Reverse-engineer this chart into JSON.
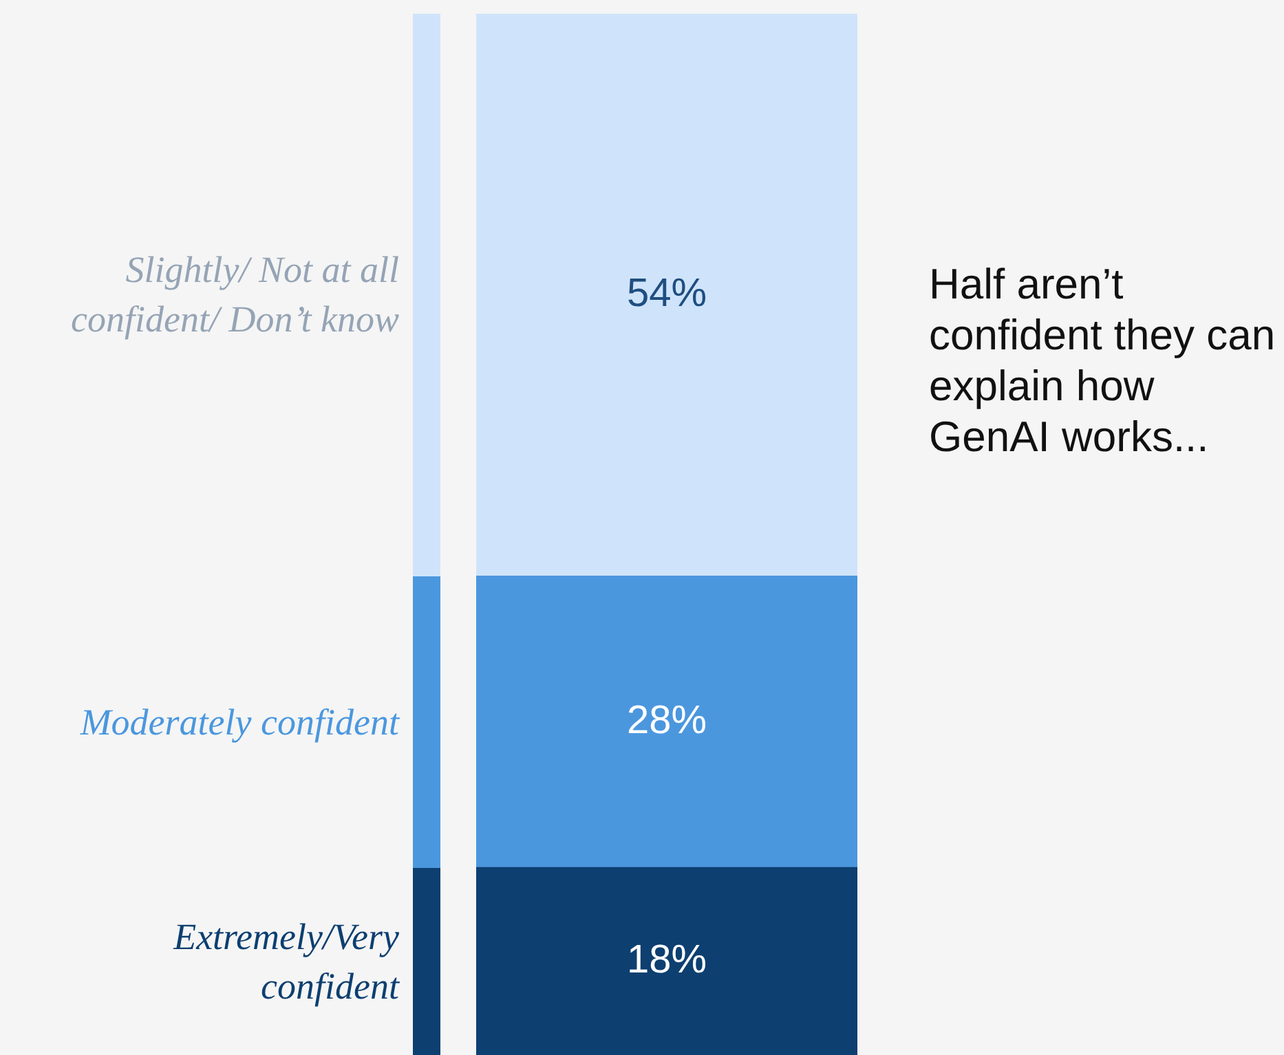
{
  "chart_data": {
    "type": "bar",
    "stacked": true,
    "categories": [
      null
    ],
    "series": [
      {
        "name": "Extremely/Very confident",
        "color": "#0d3f70",
        "values": [
          18
        ],
        "value_labels": [
          "18%"
        ]
      },
      {
        "name": "Moderately confident",
        "color": "#4b97de",
        "values": [
          28
        ],
        "value_labels": [
          "28%"
        ]
      },
      {
        "name": "Slightly/ Not at all confident/ Don’t know",
        "color": "#cfe4fb",
        "values": [
          54
        ],
        "value_labels": [
          "54%"
        ]
      }
    ],
    "tick_labels": false,
    "annotations": [
      "Half aren’t confident they can explain how GenAI works..."
    ]
  }
}
